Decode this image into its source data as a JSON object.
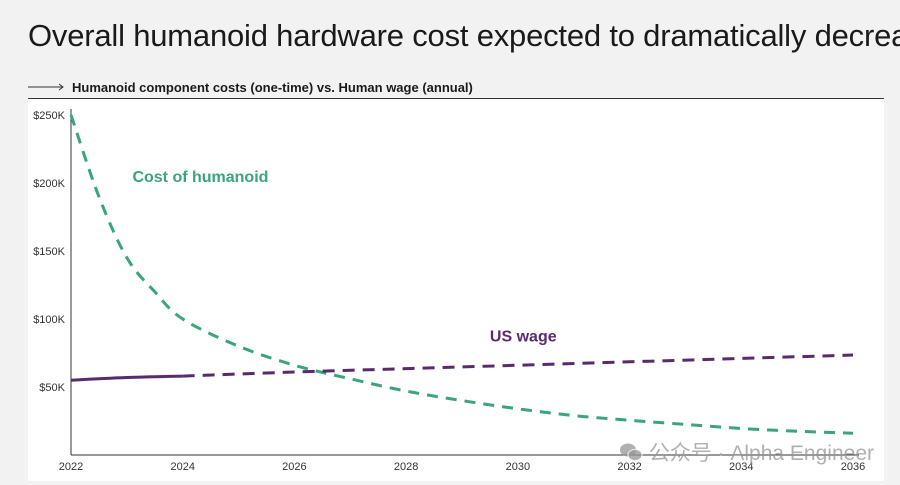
{
  "title": "Overall humanoid hardware cost expected to dramatically decrease",
  "subtitle": "Humanoid component costs (one-time) vs. Human wage (annual)",
  "watermark": "公众号 · Alpha Engineer",
  "colors": {
    "humanoid": "#3aa57a",
    "wage": "#5a2a6e",
    "axis": "#333333"
  },
  "chart_data": {
    "type": "line",
    "xlabel": "",
    "ylabel": "",
    "xlim": [
      2022,
      2036
    ],
    "ylim": [
      0,
      250000
    ],
    "x_ticks": [
      2022,
      2024,
      2026,
      2028,
      2030,
      2032,
      2034,
      2036
    ],
    "x_tick_labels": [
      "2022",
      "2024",
      "2026",
      "2028",
      "2030",
      "2032",
      "2034",
      "2036"
    ],
    "y_ticks": [
      50000,
      100000,
      150000,
      200000,
      250000
    ],
    "y_tick_labels": [
      "$50K",
      "$100K",
      "$150K",
      "$200K",
      "$250K"
    ],
    "series": [
      {
        "name": "Cost of humanoid",
        "label": "Cost of humanoid",
        "color": "#3aa57a",
        "style": "dashed",
        "x": [
          2022,
          2022.5,
          2023,
          2023.5,
          2024,
          2025,
          2026,
          2027,
          2028,
          2029,
          2030,
          2031,
          2032,
          2033,
          2034,
          2035,
          2036
        ],
        "y": [
          250000,
          190000,
          145000,
          120000,
          100000,
          80000,
          66000,
          56000,
          47000,
          40000,
          34000,
          29000,
          25500,
          22500,
          19500,
          17500,
          16000
        ]
      },
      {
        "name": "US wage (historical)",
        "label": "",
        "color": "#5a2a6e",
        "style": "solid",
        "x": [
          2022,
          2023,
          2024
        ],
        "y": [
          55000,
          57000,
          58000
        ]
      },
      {
        "name": "US wage (projected)",
        "label": "US wage",
        "color": "#5a2a6e",
        "style": "dashed",
        "x": [
          2024,
          2026,
          2028,
          2030,
          2032,
          2034,
          2036
        ],
        "y": [
          58000,
          61000,
          63500,
          66000,
          68500,
          71000,
          73500
        ]
      }
    ]
  }
}
